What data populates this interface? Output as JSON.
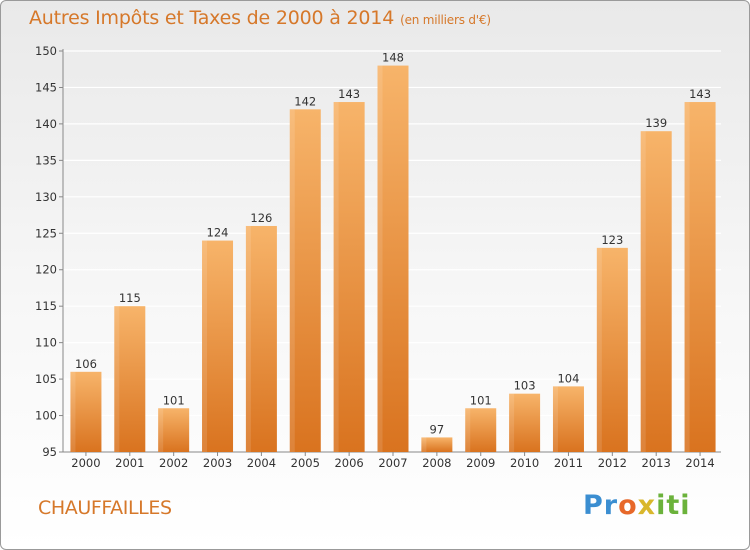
{
  "chart_data": {
    "type": "bar",
    "title": "Autres Impôts et Taxes de 2000 à 2014",
    "subtitle": "(en milliers d'€)",
    "xlabel": "",
    "ylabel": "",
    "categories": [
      "2000",
      "2001",
      "2002",
      "2003",
      "2004",
      "2005",
      "2006",
      "2007",
      "2008",
      "2009",
      "2010",
      "2011",
      "2012",
      "2013",
      "2014"
    ],
    "values": [
      106,
      115,
      101,
      124,
      126,
      142,
      143,
      148,
      97,
      101,
      103,
      104,
      123,
      139,
      143
    ],
    "ylim": [
      95,
      150
    ],
    "yticks": [
      95,
      100,
      105,
      110,
      115,
      120,
      125,
      130,
      135,
      140,
      145,
      150
    ],
    "grid": "horizontal",
    "bar_color": "#f0963f",
    "bar_color_light": "#f7b46a",
    "bar_color_dark": "#d9731f"
  },
  "footer": {
    "location": "CHAUFFAILLES",
    "logo_parts": [
      "Pr",
      "o",
      "x",
      "iti"
    ]
  }
}
